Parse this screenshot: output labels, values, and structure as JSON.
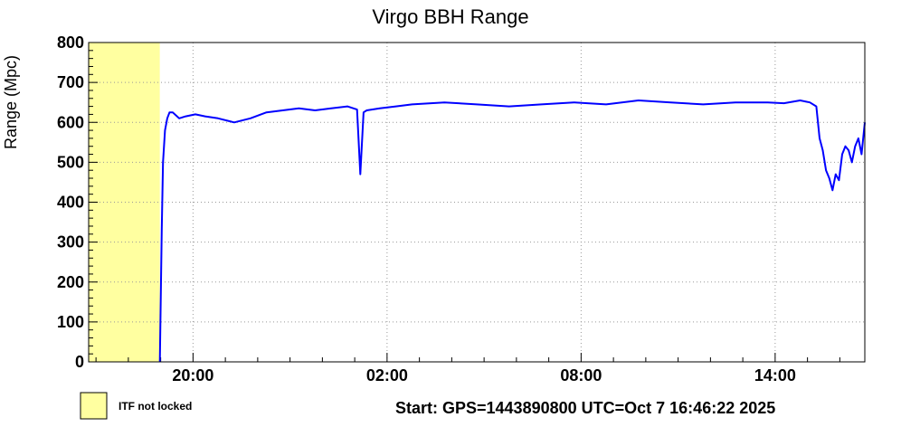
{
  "chart_data": {
    "type": "line",
    "title": "Virgo BBH Range",
    "ylabel": "Range (Mpc)",
    "xlabel": "",
    "x_unit": "hours since 16:46:22",
    "xlim": [
      0,
      24
    ],
    "ylim": [
      0,
      800
    ],
    "yticks": [
      0,
      100,
      200,
      300,
      400,
      500,
      600,
      700,
      800
    ],
    "xticks": [
      {
        "x": 3.2273,
        "label": "20:00"
      },
      {
        "x": 9.2273,
        "label": "02:00"
      },
      {
        "x": 15.2273,
        "label": "08:00"
      },
      {
        "x": 21.2273,
        "label": "14:00"
      }
    ],
    "grid": true,
    "line_color": "#0000ff",
    "shade_color": "#ffffa0",
    "not_locked_interval": [
      0,
      2.2
    ],
    "legend": {
      "label": "ITF not locked",
      "placement": "bottom-left"
    },
    "footer": "Start: GPS=1443890800 UTC=Oct  7 16:46:22 2025",
    "series": [
      {
        "name": "",
        "x": [
          2.2,
          2.26,
          2.3,
          2.36,
          2.43,
          2.5,
          2.6,
          2.8,
          3.0,
          3.3,
          3.6,
          4.0,
          4.5,
          5.0,
          5.5,
          6.0,
          6.5,
          7.0,
          7.5,
          8.0,
          8.3,
          8.4,
          8.5,
          8.6,
          9.0,
          9.5,
          10.0,
          11.0,
          12.0,
          13.0,
          14.0,
          15.0,
          16.0,
          17.0,
          18.0,
          19.0,
          20.0,
          21.0,
          21.5,
          22.0,
          22.3,
          22.5,
          22.6,
          22.7,
          22.8,
          22.9,
          23.0,
          23.1,
          23.2,
          23.3,
          23.4,
          23.5,
          23.6,
          23.7,
          23.8,
          23.9,
          24.0
        ],
        "y": [
          0,
          330,
          500,
          580,
          610,
          625,
          625,
          610,
          615,
          620,
          615,
          610,
          600,
          610,
          625,
          630,
          635,
          630,
          635,
          640,
          632,
          470,
          625,
          630,
          635,
          640,
          645,
          650,
          645,
          640,
          645,
          650,
          645,
          655,
          650,
          645,
          650,
          650,
          648,
          655,
          650,
          640,
          560,
          530,
          480,
          460,
          430,
          470,
          455,
          520,
          540,
          530,
          500,
          540,
          560,
          520,
          600
        ]
      }
    ]
  }
}
